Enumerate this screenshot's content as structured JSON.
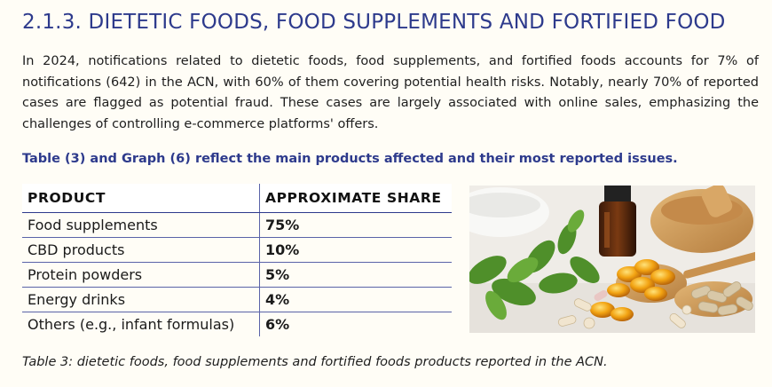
{
  "section": {
    "heading": "2.1.3. DIETETIC FOODS, FOOD SUPPLEMENTS AND FORTIFIED FOOD",
    "intro": "In 2024, notifications related to dietetic foods, food supplements, and fortified foods accounts for 7% of notifications (642) in the ACN, with 60% of them covering potential health risks. Notably, nearly 70% of reported cases are flagged as potential fraud. These cases are largely associated with online sales, emphasizing the challenges of controlling e-commerce platforms' offers.",
    "lead_in": "Table (3) and Graph (6) reflect the main products affected and their most reported issues."
  },
  "table": {
    "headers": [
      "PRODUCT",
      "APPROXIMATE SHARE"
    ],
    "rows": [
      {
        "product": "Food supplements",
        "share": "75%"
      },
      {
        "product": "CBD products",
        "share": "10%"
      },
      {
        "product": "Protein powders",
        "share": "5%"
      },
      {
        "product": "Energy drinks",
        "share": "4%"
      },
      {
        "product": "Others (e.g., infant formulas)",
        "share": "6%"
      }
    ],
    "caption": "Table 3: dietetic foods, food supplements and fortified foods products reported in the ACN."
  },
  "colors": {
    "accent": "#2d3a8c",
    "background": "#fffdf6"
  },
  "photo": {
    "icon": "supplements-photo"
  }
}
